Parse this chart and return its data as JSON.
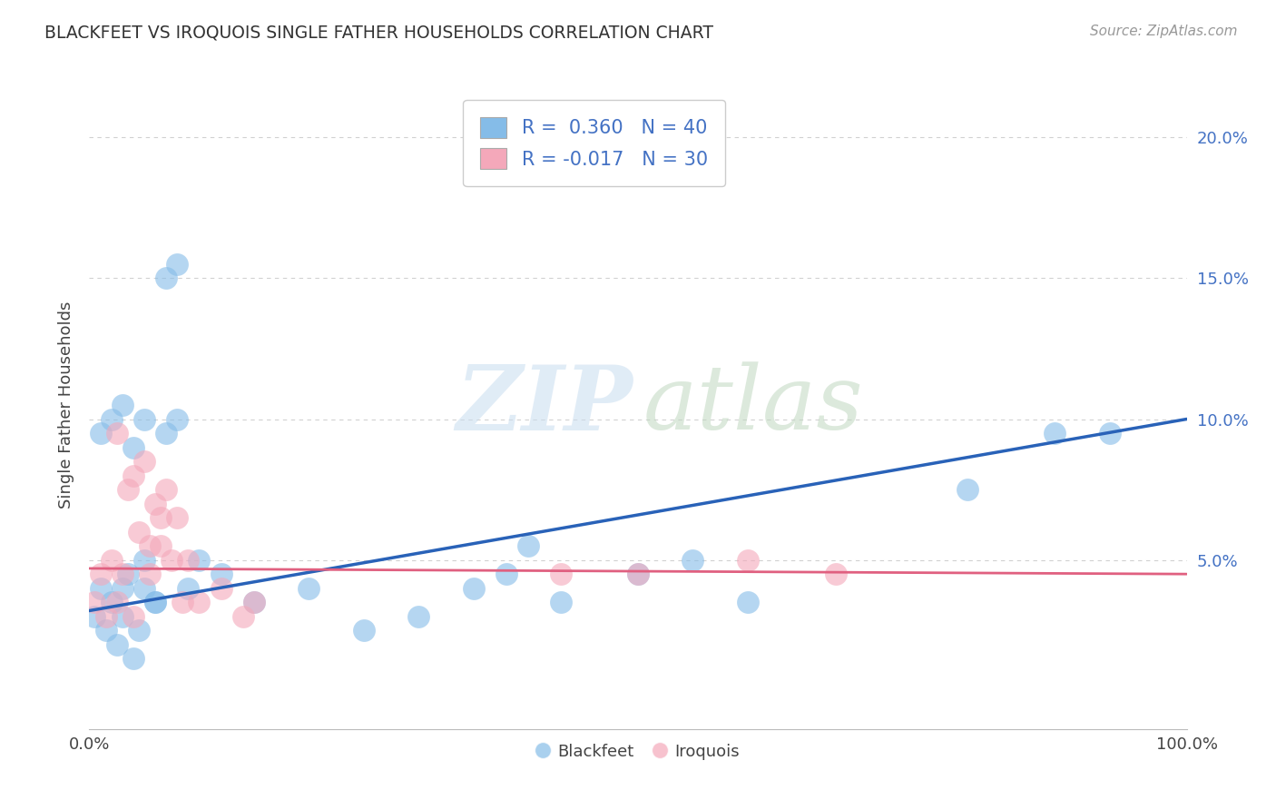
{
  "title": "BLACKFEET VS IROQUOIS SINGLE FATHER HOUSEHOLDS CORRELATION CHART",
  "source": "Source: ZipAtlas.com",
  "ylabel": "Single Father Households",
  "xlim": [
    0,
    100
  ],
  "ylim": [
    -1,
    22
  ],
  "yticks": [
    5,
    10,
    15,
    20
  ],
  "ytick_labels": [
    "5.0%",
    "10.0%",
    "15.0%",
    "20.0%"
  ],
  "xtick_labels": [
    "0.0%",
    "100.0%"
  ],
  "legend_R_blue": "0.360",
  "legend_N_blue": "40",
  "legend_R_pink": "-0.017",
  "legend_N_pink": "30",
  "blue_color": "#85BCE8",
  "pink_color": "#F4A8BA",
  "blue_line_color": "#2962B8",
  "pink_line_color": "#E06080",
  "background_color": "#FFFFFF",
  "grid_color": "#CCCCCC",
  "blue_regression": [
    3.2,
    10.0
  ],
  "pink_regression": [
    4.7,
    4.5
  ],
  "blue_scatter_x": [
    0.5,
    1.0,
    1.5,
    2.0,
    2.5,
    3.0,
    3.5,
    4.0,
    4.5,
    5.0,
    1.0,
    2.0,
    3.0,
    4.0,
    5.0,
    6.0,
    7.0,
    8.0,
    3.0,
    5.0,
    6.0,
    7.0,
    8.0,
    9.0,
    10.0,
    12.0,
    15.0,
    20.0,
    25.0,
    30.0,
    35.0,
    38.0,
    40.0,
    43.0,
    50.0,
    55.0,
    60.0,
    80.0,
    88.0,
    93.0
  ],
  "blue_scatter_y": [
    3.0,
    4.0,
    2.5,
    3.5,
    2.0,
    3.0,
    4.5,
    1.5,
    2.5,
    4.0,
    9.5,
    10.0,
    10.5,
    9.0,
    10.0,
    3.5,
    15.0,
    15.5,
    4.0,
    5.0,
    3.5,
    9.5,
    10.0,
    4.0,
    5.0,
    4.5,
    3.5,
    4.0,
    2.5,
    3.0,
    4.0,
    4.5,
    5.5,
    3.5,
    4.5,
    5.0,
    3.5,
    7.5,
    9.5,
    9.5
  ],
  "pink_scatter_x": [
    0.5,
    1.0,
    1.5,
    2.0,
    2.5,
    3.0,
    3.5,
    4.0,
    4.5,
    5.0,
    5.5,
    6.0,
    6.5,
    7.0,
    7.5,
    8.0,
    9.0,
    10.0,
    12.0,
    14.0,
    15.0,
    4.0,
    5.5,
    6.5,
    8.5,
    43.0,
    50.0,
    60.0,
    68.0,
    2.5
  ],
  "pink_scatter_y": [
    3.5,
    4.5,
    3.0,
    5.0,
    3.5,
    4.5,
    7.5,
    8.0,
    6.0,
    8.5,
    5.5,
    7.0,
    6.5,
    7.5,
    5.0,
    6.5,
    5.0,
    3.5,
    4.0,
    3.0,
    3.5,
    3.0,
    4.5,
    5.5,
    3.5,
    4.5,
    4.5,
    5.0,
    4.5,
    9.5
  ]
}
